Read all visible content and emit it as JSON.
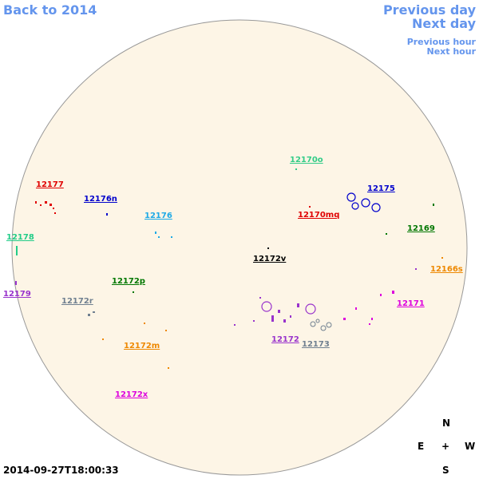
{
  "navigation": {
    "back": "Back to 2014",
    "previous_day": "Previous day",
    "next_day": "Next day",
    "previous_hour": "Previous hour",
    "next_hour": "Next hour"
  },
  "regions": [
    {
      "label": "12177",
      "color": "#e00000"
    },
    {
      "label": "12176n",
      "color": "#0000cc"
    },
    {
      "label": "12176",
      "color": "#1ca9e6"
    },
    {
      "label": "12178",
      "color": "#22cc88"
    },
    {
      "label": "12179",
      "color": "#9933cc"
    },
    {
      "label": "12172r",
      "color": "#708090"
    },
    {
      "label": "12172p",
      "color": "#007700"
    },
    {
      "label": "12172m",
      "color": "#ee8800"
    },
    {
      "label": "12172x",
      "color": "#dd00dd"
    },
    {
      "label": "12170o",
      "color": "#33cc88"
    },
    {
      "label": "12175",
      "color": "#0000cc"
    },
    {
      "label": "12170mq",
      "color": "#e00000"
    },
    {
      "label": "12169",
      "color": "#007700"
    },
    {
      "label": "12166s",
      "color": "#ee8800"
    },
    {
      "label": "12172v",
      "color": "#000000"
    },
    {
      "label": "12171",
      "color": "#dd00dd"
    },
    {
      "label": "12172",
      "color": "#9933cc"
    },
    {
      "label": "12173",
      "color": "#708090"
    }
  ],
  "timestamp": "2014-09-27T18:00:33",
  "compass": {
    "north": "N",
    "east": "E",
    "center": "+",
    "west": "W",
    "south": "S"
  }
}
